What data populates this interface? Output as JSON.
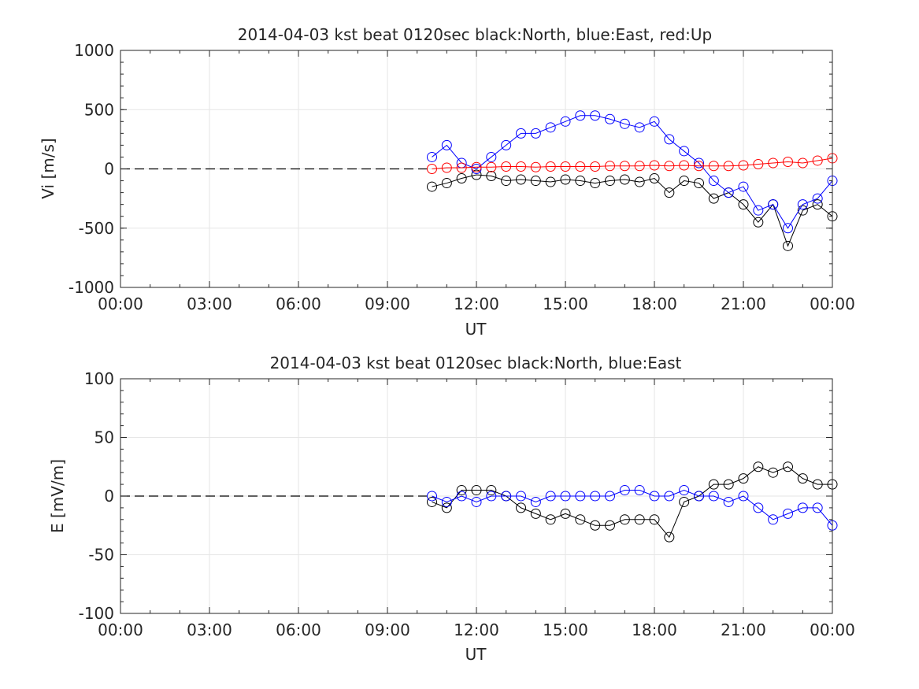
{
  "chart_data": [
    {
      "type": "scatter",
      "title": "2014-04-03 kst beat 0120sec black:North, blue:East, red:Up",
      "xlabel": "UT",
      "ylabel": "Vi [m/s]",
      "xlim_hours": [
        0,
        24
      ],
      "ylim": [
        -1000,
        1000
      ],
      "grid": true,
      "marker": "open-circle-with-errorbar",
      "x_ticks": [
        0,
        3,
        6,
        9,
        12,
        15,
        18,
        21,
        24
      ],
      "x_tick_labels": [
        "00:00",
        "03:00",
        "06:00",
        "09:00",
        "12:00",
        "15:00",
        "18:00",
        "21:00",
        "00:00"
      ],
      "y_ticks": [
        1000,
        500,
        0,
        -500,
        -1000
      ],
      "y_tick_labels": [
        "1000",
        "500",
        "0",
        "-500",
        "-1000"
      ],
      "zero_line": {
        "y": 0,
        "x_from_hours": 0,
        "x_to_hours": 10.5,
        "style": "dashed"
      },
      "series": [
        {
          "name": "North",
          "color": "#000000",
          "x_hours": [
            10.5,
            11.0,
            11.5,
            12.0,
            12.5,
            13.0,
            13.5,
            14.0,
            14.5,
            15.0,
            15.5,
            16.0,
            16.5,
            17.0,
            17.5,
            18.0,
            18.5,
            19.0,
            19.5,
            20.0,
            20.5,
            21.0,
            21.5,
            22.0,
            22.5,
            23.0,
            23.5,
            24.0
          ],
          "values": [
            -150,
            -120,
            -80,
            -50,
            -60,
            -100,
            -90,
            -100,
            -110,
            -90,
            -100,
            -120,
            -100,
            -90,
            -110,
            -80,
            -200,
            -100,
            -120,
            -250,
            -200,
            -300,
            -450,
            -300,
            -650,
            -350,
            -300,
            -400
          ]
        },
        {
          "name": "East",
          "color": "#0000ff",
          "x_hours": [
            10.5,
            11.0,
            11.5,
            12.0,
            12.5,
            13.0,
            13.5,
            14.0,
            14.5,
            15.0,
            15.5,
            16.0,
            16.5,
            17.0,
            17.5,
            18.0,
            18.5,
            19.0,
            19.5,
            20.0,
            20.5,
            21.0,
            21.5,
            22.0,
            22.5,
            23.0,
            23.5,
            24.0
          ],
          "values": [
            100,
            200,
            50,
            0,
            100,
            200,
            300,
            300,
            350,
            400,
            450,
            450,
            420,
            380,
            350,
            400,
            250,
            150,
            50,
            -100,
            -200,
            -150,
            -350,
            -300,
            -500,
            -300,
            -250,
            -100
          ]
        },
        {
          "name": "Up",
          "color": "#ff0000",
          "x_hours": [
            10.5,
            11.0,
            11.5,
            12.0,
            12.5,
            13.0,
            13.5,
            14.0,
            14.5,
            15.0,
            15.5,
            16.0,
            16.5,
            17.0,
            17.5,
            18.0,
            18.5,
            19.0,
            19.5,
            20.0,
            20.5,
            21.0,
            21.5,
            22.0,
            22.5,
            23.0,
            23.5,
            24.0
          ],
          "values": [
            0,
            10,
            10,
            15,
            15,
            20,
            20,
            15,
            20,
            20,
            20,
            20,
            25,
            25,
            25,
            30,
            25,
            30,
            25,
            25,
            25,
            30,
            40,
            50,
            60,
            50,
            70,
            90
          ]
        }
      ]
    },
    {
      "type": "scatter",
      "title": "2014-04-03 kst beat 0120sec black:North, blue:East",
      "xlabel": "UT",
      "ylabel": "E [mV/m]",
      "xlim_hours": [
        0,
        24
      ],
      "ylim": [
        -100,
        100
      ],
      "grid": true,
      "marker": "open-circle-with-errorbar",
      "x_ticks": [
        0,
        3,
        6,
        9,
        12,
        15,
        18,
        21,
        24
      ],
      "x_tick_labels": [
        "00:00",
        "03:00",
        "06:00",
        "09:00",
        "12:00",
        "15:00",
        "18:00",
        "21:00",
        "00:00"
      ],
      "y_ticks": [
        100,
        50,
        0,
        -50,
        -100
      ],
      "y_tick_labels": [
        "100",
        "50",
        "0",
        "-50",
        "-100"
      ],
      "zero_line": {
        "y": 0,
        "x_from_hours": 0,
        "x_to_hours": 10.5,
        "style": "dashed"
      },
      "series": [
        {
          "name": "North",
          "color": "#000000",
          "x_hours": [
            10.5,
            11.0,
            11.5,
            12.0,
            12.5,
            13.0,
            13.5,
            14.0,
            14.5,
            15.0,
            15.5,
            16.0,
            16.5,
            17.0,
            17.5,
            18.0,
            18.5,
            19.0,
            19.5,
            20.0,
            20.5,
            21.0,
            21.5,
            22.0,
            22.5,
            23.0,
            23.5,
            24.0
          ],
          "values": [
            -5,
            -10,
            5,
            5,
            5,
            0,
            -10,
            -15,
            -20,
            -15,
            -20,
            -25,
            -25,
            -20,
            -20,
            -20,
            -35,
            -5,
            0,
            10,
            10,
            15,
            25,
            20,
            25,
            15,
            10,
            10
          ]
        },
        {
          "name": "East",
          "color": "#0000ff",
          "x_hours": [
            10.5,
            11.0,
            11.5,
            12.0,
            12.5,
            13.0,
            13.5,
            14.0,
            14.5,
            15.0,
            15.5,
            16.0,
            16.5,
            17.0,
            17.5,
            18.0,
            18.5,
            19.0,
            19.5,
            20.0,
            20.5,
            21.0,
            21.5,
            22.0,
            22.5,
            23.0,
            23.5,
            24.0
          ],
          "values": [
            0,
            -5,
            0,
            -5,
            0,
            0,
            0,
            -5,
            0,
            0,
            0,
            0,
            0,
            5,
            5,
            0,
            0,
            5,
            0,
            0,
            -5,
            0,
            -10,
            -20,
            -15,
            -10,
            -10,
            -25
          ]
        }
      ]
    }
  ]
}
